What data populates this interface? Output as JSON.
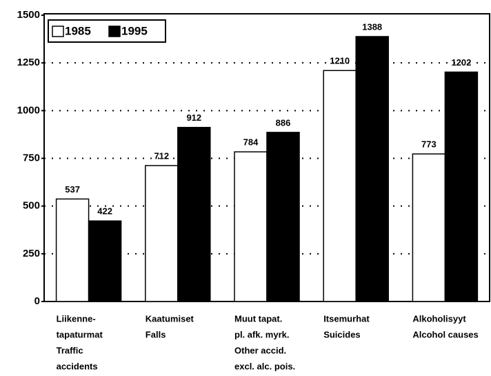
{
  "chart_data": {
    "type": "bar",
    "categories": [
      [
        "Liikenne-",
        "tapaturmat",
        "Traffic",
        "accidents"
      ],
      [
        "Kaatumiset",
        "Falls"
      ],
      [
        "Muut tapat.",
        "pl. afk. myrk.",
        "Other accid.",
        "excl. alc. pois."
      ],
      [
        "Itsemurhat",
        "Suicides"
      ],
      [
        "Alkoholisyyt",
        "Alcohol causes"
      ]
    ],
    "series": [
      {
        "name": "1985",
        "color": "#ffffff",
        "values": [
          537,
          712,
          784,
          1210,
          773
        ]
      },
      {
        "name": "1995",
        "color": "#000000",
        "values": [
          422,
          912,
          886,
          1388,
          1202
        ]
      }
    ],
    "ylim": [
      0,
      1500
    ],
    "yticks": [
      0,
      250,
      500,
      750,
      1000,
      1250,
      1500
    ],
    "grid": true,
    "legend": "top-left"
  }
}
